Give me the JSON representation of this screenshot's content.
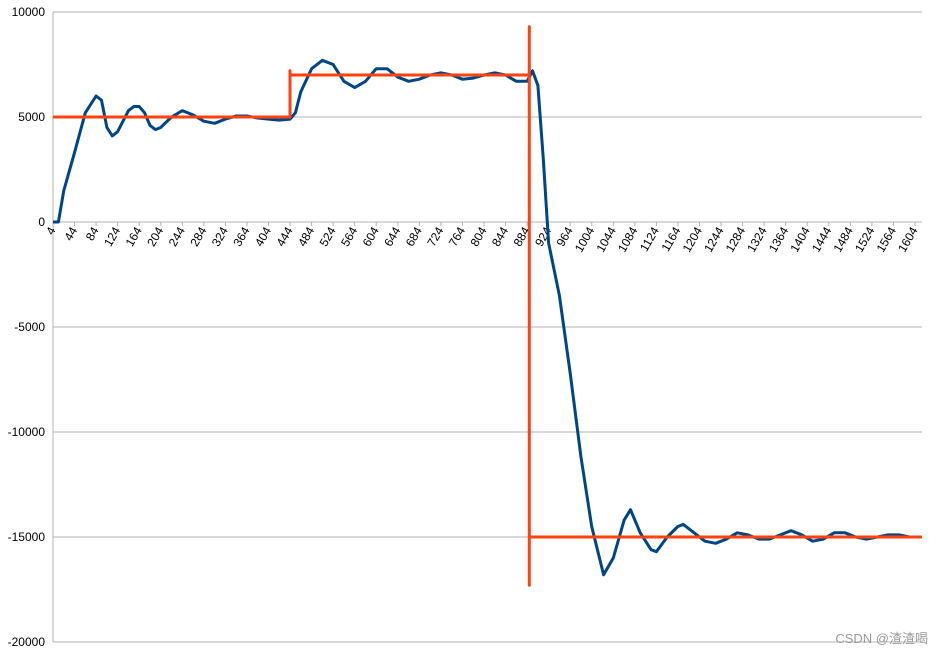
{
  "chart_data": {
    "type": "line",
    "xlim": [
      4,
      1617
    ],
    "xticks": [
      4,
      44,
      84,
      124,
      164,
      204,
      244,
      284,
      324,
      364,
      404,
      444,
      484,
      524,
      564,
      604,
      644,
      684,
      724,
      764,
      804,
      844,
      884,
      924,
      964,
      1004,
      1044,
      1084,
      1124,
      1164,
      1204,
      1244,
      1284,
      1324,
      1364,
      1404,
      1444,
      1484,
      1524,
      1564,
      1604
    ],
    "ylim": [
      -20000,
      10000
    ],
    "yticks": [
      10000,
      5000,
      0,
      -5000,
      -10000,
      -15000,
      -20000
    ],
    "grid": true,
    "series": [
      {
        "color": "#004586",
        "x": [
          4,
          14,
          24,
          44,
          64,
          84,
          94,
          104,
          114,
          124,
          144,
          154,
          164,
          174,
          184,
          194,
          204,
          224,
          244,
          264,
          284,
          304,
          324,
          344,
          364,
          384,
          404,
          424,
          444,
          454,
          464,
          484,
          504,
          524,
          544,
          564,
          584,
          604,
          624,
          644,
          664,
          684,
          704,
          724,
          744,
          764,
          784,
          804,
          824,
          844,
          864,
          884,
          894,
          904,
          914,
          924,
          944,
          964,
          984,
          1004,
          1026,
          1044,
          1064,
          1076,
          1094,
          1114,
          1124,
          1144,
          1164,
          1174,
          1194,
          1214,
          1234,
          1254,
          1274,
          1294,
          1314,
          1334,
          1354,
          1374,
          1394,
          1414,
          1434,
          1454,
          1474,
          1494,
          1514,
          1534,
          1554,
          1574,
          1594,
          1617
        ],
        "values": [
          0,
          0,
          1500,
          3300,
          5200,
          6000,
          5800,
          4500,
          4100,
          4300,
          5300,
          5500,
          5500,
          5200,
          4600,
          4400,
          4500,
          5000,
          5300,
          5100,
          4800,
          4700,
          4900,
          5050,
          5050,
          4950,
          4900,
          4850,
          4900,
          5200,
          6200,
          7300,
          7700,
          7500,
          6700,
          6400,
          6700,
          7300,
          7300,
          6900,
          6700,
          6800,
          7000,
          7100,
          7000,
          6800,
          6850,
          7000,
          7100,
          7000,
          6700,
          6700,
          7200,
          6500,
          3000,
          -1000,
          -3500,
          -7200,
          -11200,
          -14500,
          -16800,
          -16000,
          -14200,
          -13700,
          -14800,
          -15600,
          -15700,
          -15000,
          -14500,
          -14400,
          -14800,
          -15200,
          -15300,
          -15100,
          -14800,
          -14900,
          -15100,
          -15100,
          -14900,
          -14700,
          -14900,
          -15200,
          -15100,
          -14800,
          -14800,
          -15000,
          -15100,
          -15000,
          -14900,
          -14900,
          -15000,
          -15000
        ]
      },
      {
        "color": "#ff420e",
        "x": [
          4,
          444,
          444,
          444,
          888,
          888,
          888,
          888,
          1617
        ],
        "values": [
          5000,
          5000,
          7200,
          7000,
          7000,
          9300,
          -17300,
          -15000,
          -15000
        ]
      }
    ],
    "watermark": "CSDN @渣渣喝"
  }
}
